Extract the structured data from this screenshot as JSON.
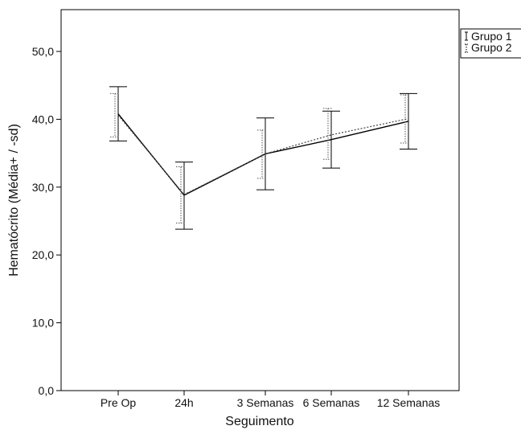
{
  "chart_data": {
    "type": "line",
    "xlabel": "Seguimento",
    "ylabel": "Hematócrito (Média+ / -sd)",
    "categories": [
      "Pre Op",
      "24h",
      "3 Semanas",
      "6 Semanas",
      "12 Semanas"
    ],
    "ylim": [
      0,
      55
    ],
    "yticks": [
      "0,0",
      "10,0",
      "20,0",
      "30,0",
      "40,0",
      "50,0"
    ],
    "ytick_values": [
      0,
      10,
      20,
      30,
      40,
      50
    ],
    "grid": false,
    "legend_position": "top-right",
    "series": [
      {
        "name": "Grupo 1",
        "style": "solid",
        "values": [
          40.8,
          28.8,
          34.9,
          37.0,
          39.7
        ],
        "upper": [
          44.8,
          33.7,
          40.2,
          41.2,
          43.8
        ],
        "lower": [
          36.8,
          23.8,
          29.6,
          32.8,
          35.6
        ]
      },
      {
        "name": "Grupo 2",
        "style": "dotted",
        "values": [
          40.6,
          28.9,
          34.9,
          37.7,
          40.1
        ],
        "upper": [
          43.8,
          33.0,
          38.4,
          41.6,
          43.6
        ],
        "lower": [
          37.4,
          24.7,
          31.3,
          34.1,
          36.5
        ]
      }
    ]
  }
}
